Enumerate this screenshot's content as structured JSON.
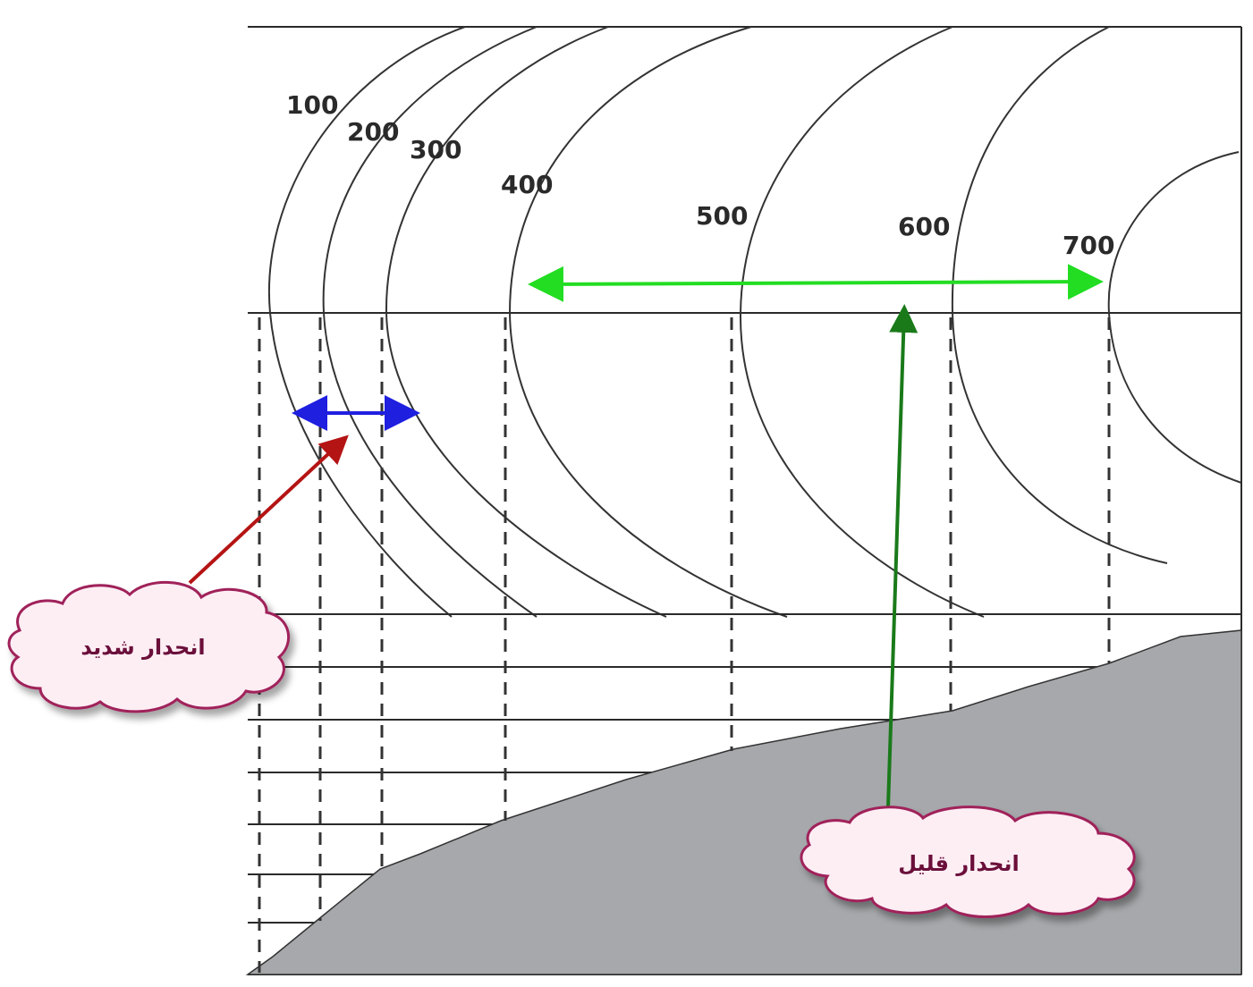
{
  "contours": {
    "labels": [
      "100",
      "200",
      "300",
      "400",
      "500",
      "600",
      "700"
    ]
  },
  "callouts": {
    "steep": "انحدار شديد",
    "gentle": "انحدار قليل"
  },
  "colors": {
    "terrain": "#a6a8ab",
    "steep_arrow": "#1f1fe0",
    "steep_pointer": "#b51414",
    "gentle_arrow": "#22dd22",
    "gentle_pointer": "#1a7a1a",
    "cloud_fill": "#fdeef4",
    "cloud_stroke": "#a0205a"
  }
}
